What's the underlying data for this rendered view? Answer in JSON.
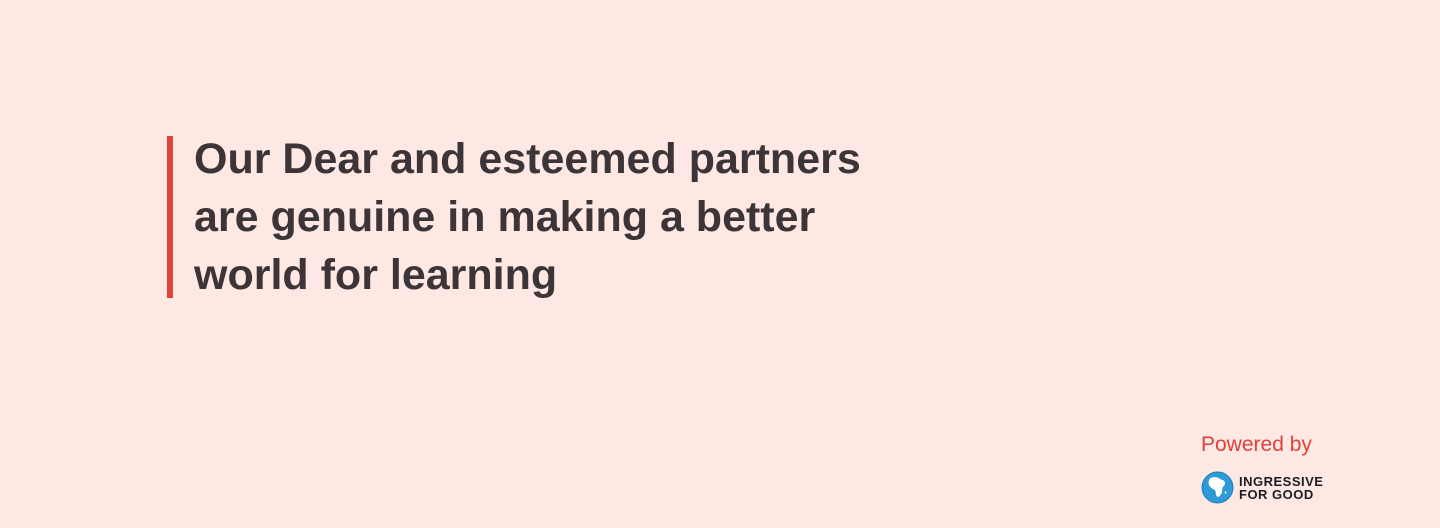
{
  "quote": {
    "text": "Our Dear and esteemed partners are genuine in making a better world for learning"
  },
  "footer": {
    "powered_by": "Powered by",
    "logo": {
      "line1": "INGRESSIVE",
      "line2": "FOR GOOD",
      "icon": "globe-africa-icon"
    }
  },
  "colors": {
    "background": "#fde8e3",
    "accent": "#e0413c",
    "text": "#3d3437",
    "logo_blue": "#2e9bd6"
  }
}
